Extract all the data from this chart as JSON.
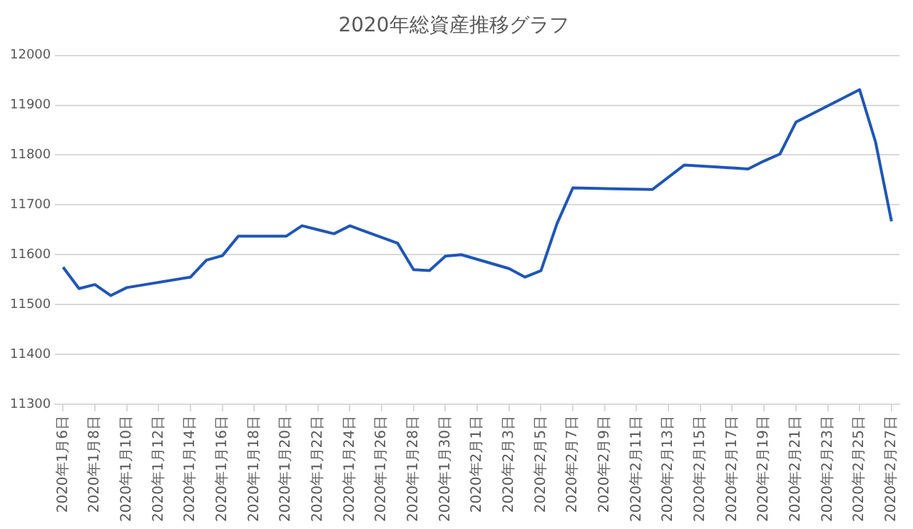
{
  "chart_data": {
    "type": "line",
    "title": "2020年総資産推移グラフ",
    "x": [
      "2020-01-06",
      "2020-01-07",
      "2020-01-08",
      "2020-01-09",
      "2020-01-10",
      "2020-01-14",
      "2020-01-15",
      "2020-01-16",
      "2020-01-17",
      "2020-01-20",
      "2020-01-21",
      "2020-01-22",
      "2020-01-23",
      "2020-01-24",
      "2020-01-27",
      "2020-01-28",
      "2020-01-29",
      "2020-01-30",
      "2020-01-31",
      "2020-02-03",
      "2020-02-04",
      "2020-02-05",
      "2020-02-06",
      "2020-02-07",
      "2020-02-10",
      "2020-02-12",
      "2020-02-14",
      "2020-02-17",
      "2020-02-18",
      "2020-02-19",
      "2020-02-20",
      "2020-02-21",
      "2020-02-25",
      "2020-02-26",
      "2020-02-27"
    ],
    "series": [
      {
        "color": "#1f56b8",
        "values": [
          11575,
          11532,
          11540,
          11518,
          11534,
          11555,
          11589,
          11598,
          11637,
          11637,
          11658,
          11650,
          11642,
          11658,
          11623,
          11570,
          11568,
          11597,
          11600,
          11572,
          11555,
          11568,
          11662,
          11734,
          11732,
          11731,
          11780,
          11774,
          11772,
          11788,
          11802,
          11866,
          11931,
          11826,
          11667
        ]
      }
    ],
    "xlim": [
      "2020-01-05T12:00",
      "2020-02-27T12:00"
    ],
    "xticks": [
      {
        "value": "2020-01-06",
        "label": "2020年1月6日"
      },
      {
        "value": "2020-01-08",
        "label": "2020年1月8日"
      },
      {
        "value": "2020-01-10",
        "label": "2020年1月10日"
      },
      {
        "value": "2020-01-12",
        "label": "2020年1月12日"
      },
      {
        "value": "2020-01-14",
        "label": "2020年1月14日"
      },
      {
        "value": "2020-01-16",
        "label": "2020年1月16日"
      },
      {
        "value": "2020-01-18",
        "label": "2020年1月18日"
      },
      {
        "value": "2020-01-20",
        "label": "2020年1月20日"
      },
      {
        "value": "2020-01-22",
        "label": "2020年1月22日"
      },
      {
        "value": "2020-01-24",
        "label": "2020年1月24日"
      },
      {
        "value": "2020-01-26",
        "label": "2020年1月26日"
      },
      {
        "value": "2020-01-28",
        "label": "2020年1月28日"
      },
      {
        "value": "2020-01-30",
        "label": "2020年1月30日"
      },
      {
        "value": "2020-02-01",
        "label": "2020年2月1日"
      },
      {
        "value": "2020-02-03",
        "label": "2020年2月3日"
      },
      {
        "value": "2020-02-05",
        "label": "2020年2月5日"
      },
      {
        "value": "2020-02-07",
        "label": "2020年2月7日"
      },
      {
        "value": "2020-02-09",
        "label": "2020年2月9日"
      },
      {
        "value": "2020-02-11",
        "label": "2020年2月11日"
      },
      {
        "value": "2020-02-13",
        "label": "2020年2月13日"
      },
      {
        "value": "2020-02-15",
        "label": "2020年2月15日"
      },
      {
        "value": "2020-02-17",
        "label": "2020年2月17日"
      },
      {
        "value": "2020-02-19",
        "label": "2020年2月19日"
      },
      {
        "value": "2020-02-21",
        "label": "2020年2月21日"
      },
      {
        "value": "2020-02-23",
        "label": "2020年2月23日"
      },
      {
        "value": "2020-02-25",
        "label": "2020年2月25日"
      },
      {
        "value": "2020-02-27",
        "label": "2020年2月27日"
      }
    ],
    "ylim": [
      11300,
      12000
    ],
    "yticks": [
      11300,
      11400,
      11500,
      11600,
      11700,
      11800,
      11900,
      12000
    ],
    "grid": "y",
    "legend": false,
    "marker": "none",
    "line_style": "solid"
  }
}
